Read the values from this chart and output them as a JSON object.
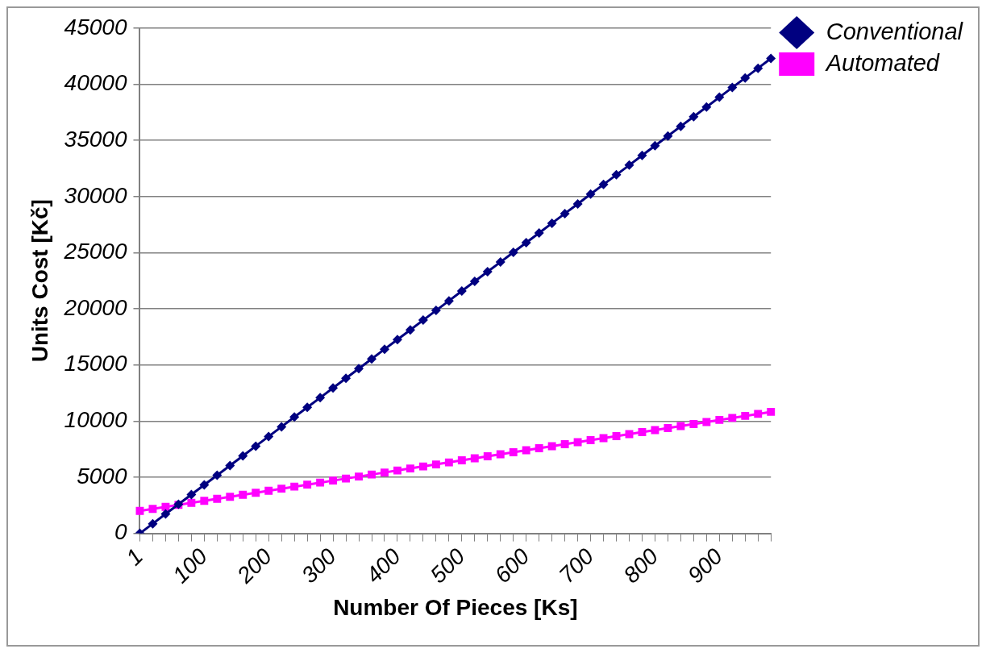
{
  "chart_data": {
    "type": "line",
    "xlabel": "Number Of Pieces [Ks]",
    "ylabel": "Units Cost [Kč]",
    "categories": [
      "1",
      null,
      null,
      null,
      null,
      "100",
      null,
      null,
      null,
      null,
      "200",
      null,
      null,
      null,
      null,
      "300",
      null,
      null,
      null,
      null,
      "400",
      null,
      null,
      null,
      null,
      "500",
      null,
      null,
      null,
      null,
      "600",
      null,
      null,
      null,
      null,
      "700",
      null,
      null,
      null,
      null,
      "800",
      null,
      null,
      null,
      null,
      "900",
      null,
      null,
      null,
      null
    ],
    "series": [
      {
        "name": "Conventional",
        "color": "#000080",
        "marker": "diamond",
        "values": [
          0,
          860,
          1730,
          2590,
          3450,
          4320,
          5180,
          6040,
          6900,
          7770,
          8630,
          9490,
          10360,
          11220,
          12080,
          12950,
          13810,
          14670,
          15530,
          16400,
          17260,
          18120,
          18990,
          19850,
          20710,
          21580,
          22440,
          23300,
          24160,
          25030,
          25890,
          26750,
          27620,
          28480,
          29340,
          30210,
          31070,
          31930,
          32790,
          33660,
          34520,
          35380,
          36250,
          37110,
          37970,
          38840,
          39700,
          40560,
          41420,
          42290
        ]
      },
      {
        "name": "Automated",
        "color": "#ff00ff",
        "marker": "square",
        "values": [
          2000,
          2180,
          2360,
          2540,
          2720,
          2900,
          3080,
          3260,
          3440,
          3620,
          3800,
          3980,
          4160,
          4340,
          4520,
          4700,
          4880,
          5060,
          5240,
          5420,
          5600,
          5780,
          5960,
          6140,
          6320,
          6500,
          6680,
          6860,
          7040,
          7220,
          7400,
          7580,
          7760,
          7940,
          8120,
          8300,
          8480,
          8660,
          8840,
          9020,
          9200,
          9380,
          9560,
          9740,
          9920,
          10100,
          10280,
          10460,
          10640,
          10820
        ]
      }
    ],
    "ylim": [
      0,
      45000
    ],
    "yticks": [
      0,
      5000,
      10000,
      15000,
      20000,
      25000,
      30000,
      35000,
      40000,
      45000
    ],
    "grid": "y",
    "legend": "top right",
    "line_style": "solid"
  }
}
